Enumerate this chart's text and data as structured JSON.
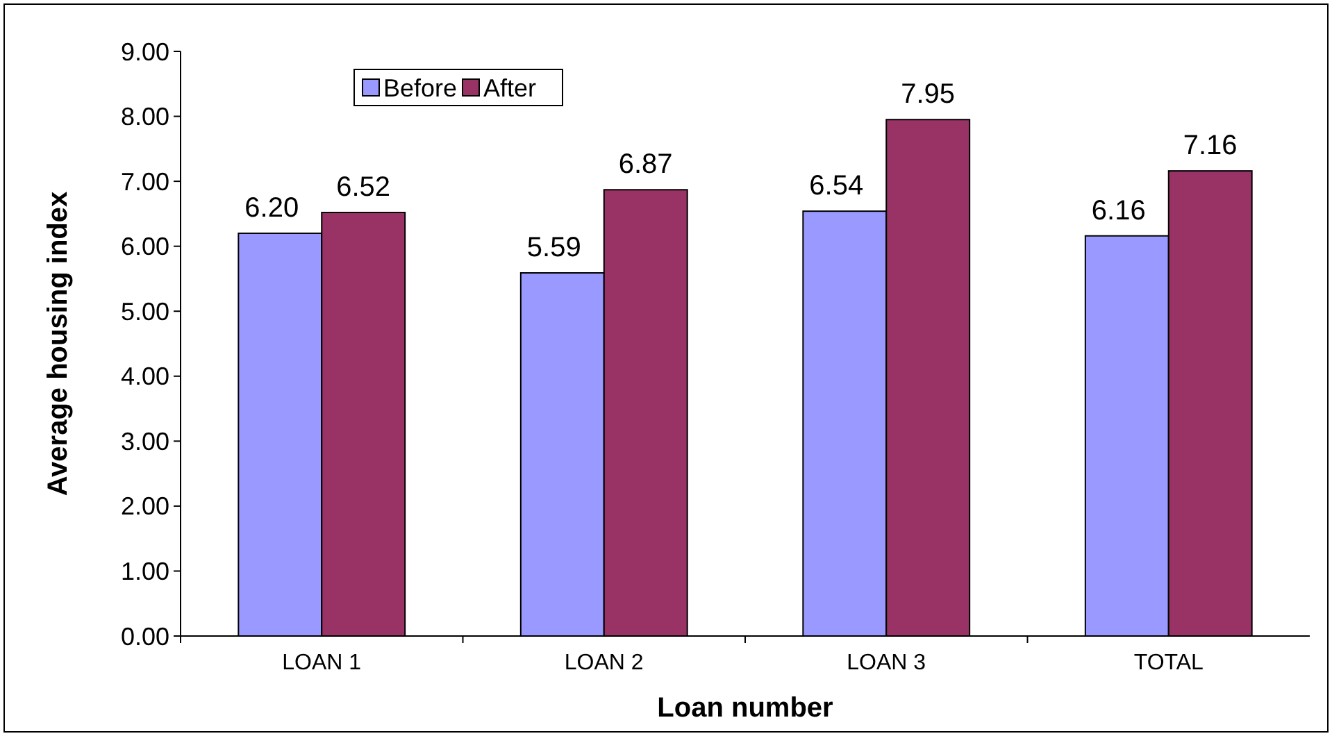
{
  "chart_data": {
    "type": "bar",
    "xlabel": "Loan number",
    "ylabel": "Average housing index",
    "categories": [
      "LOAN 1",
      "LOAN 2",
      "LOAN 3",
      "TOTAL"
    ],
    "series": [
      {
        "name": "Before",
        "color": "#9999ff",
        "values": [
          6.2,
          5.59,
          6.54,
          6.16
        ],
        "value_labels": [
          "6.20",
          "5.59",
          "6.54",
          "6.16"
        ]
      },
      {
        "name": "After",
        "color": "#993366",
        "values": [
          6.52,
          6.87,
          7.95,
          7.16
        ],
        "value_labels": [
          "6.52",
          "6.87",
          "7.95",
          "7.16"
        ]
      }
    ],
    "ylim": [
      0,
      9
    ],
    "yticks": [
      {
        "value": 0,
        "label": "0.00"
      },
      {
        "value": 1,
        "label": "1.00"
      },
      {
        "value": 2,
        "label": "2.00"
      },
      {
        "value": 3,
        "label": "3.00"
      },
      {
        "value": 4,
        "label": "4.00"
      },
      {
        "value": 5,
        "label": "5.00"
      },
      {
        "value": 6,
        "label": "6.00"
      },
      {
        "value": 7,
        "label": "7.00"
      },
      {
        "value": 8,
        "label": "8.00"
      },
      {
        "value": 9,
        "label": "9.00"
      }
    ],
    "legend": "top left"
  }
}
